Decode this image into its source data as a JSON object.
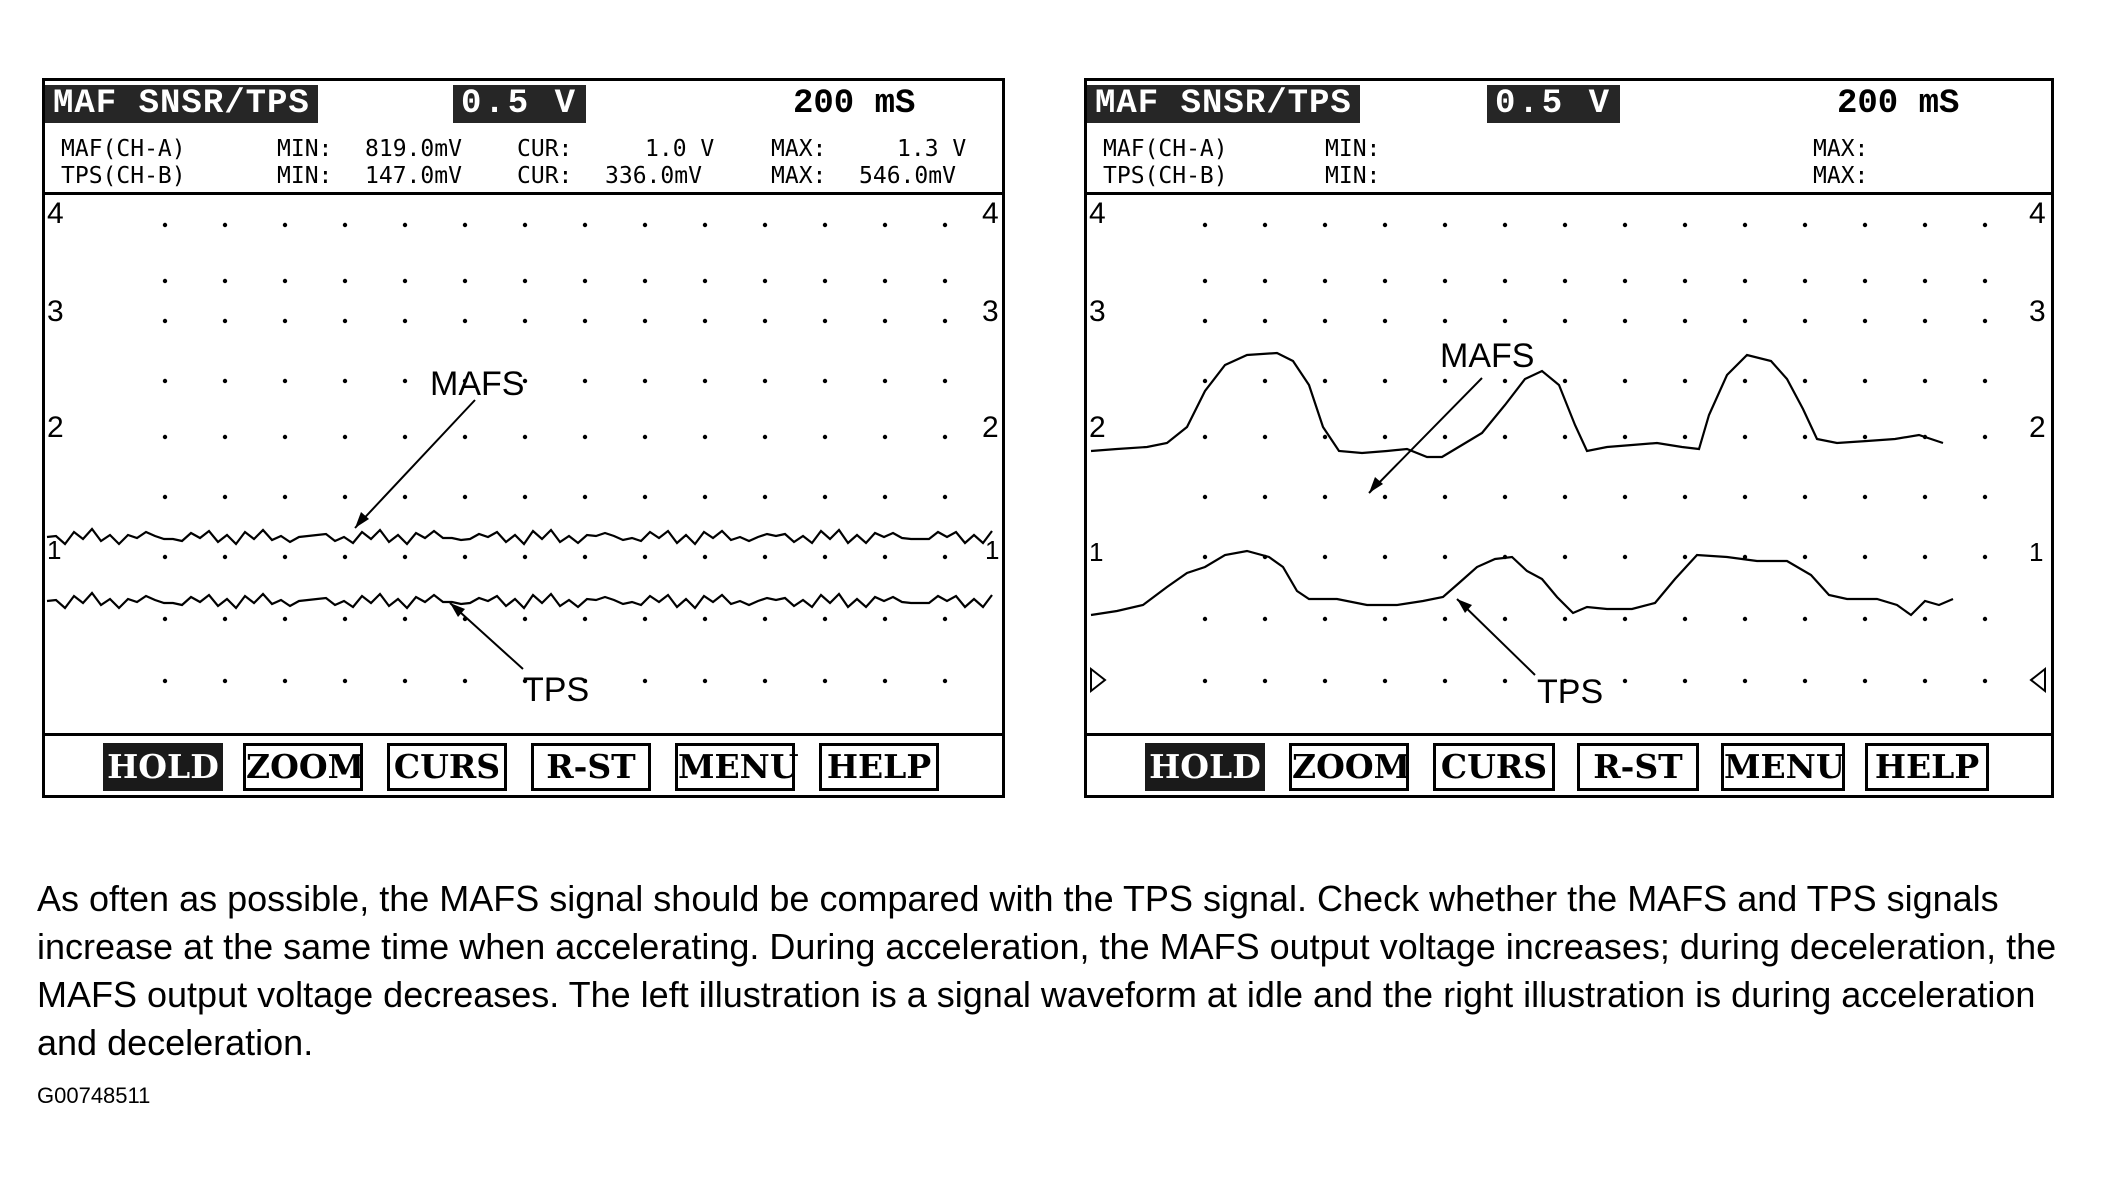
{
  "left_screen": {
    "title": "MAF SNSR/TPS",
    "volts_div": "0.5 V",
    "time_div": "200 mS",
    "row_a": {
      "channel": "MAF(CH-A)",
      "min_label": "MIN:",
      "min": "819.0mV",
      "cur_label": "CUR:",
      "cur": "1.0 V",
      "max_label": "MAX:",
      "max": "1.3 V"
    },
    "row_b": {
      "channel": "TPS(CH-B)",
      "min_label": "MIN:",
      "min": "147.0mV",
      "cur_label": "CUR:",
      "cur": "336.0mV",
      "max_label": "MAX:",
      "max": "546.0mV"
    },
    "scale_labels": [
      "4",
      "3",
      "2",
      "1"
    ],
    "annotations": {
      "mafs": "MAFS",
      "tps": "TPS"
    }
  },
  "right_screen": {
    "title": "MAF SNSR/TPS",
    "volts_div": "0.5 V",
    "time_div": "200 mS",
    "row_a": {
      "channel": "MAF(CH-A)",
      "min_label": "MIN:",
      "max_label": "MAX:"
    },
    "row_b": {
      "channel": "TPS(CH-B)",
      "min_label": "MIN:",
      "max_label": "MAX:"
    },
    "scale_labels": [
      "4",
      "3",
      "2",
      "1"
    ],
    "annotations": {
      "mafs": "MAFS",
      "tps": "TPS"
    }
  },
  "softkeys": [
    "HOLD",
    "ZOOM",
    "CURS",
    "R-ST",
    "MENU",
    "HELP"
  ],
  "caption": "As often as possible, the MAFS signal should be compared with the TPS signal. Check whether the MAFS and TPS signals increase at the same time when accelerating. During acceleration, the MAFS output voltage increases; during deceleration, the MAFS output voltage decreases. The left illustration is a signal waveform at idle and the right illustration is during acceleration and deceleration.",
  "figure_id": "G00748511"
}
